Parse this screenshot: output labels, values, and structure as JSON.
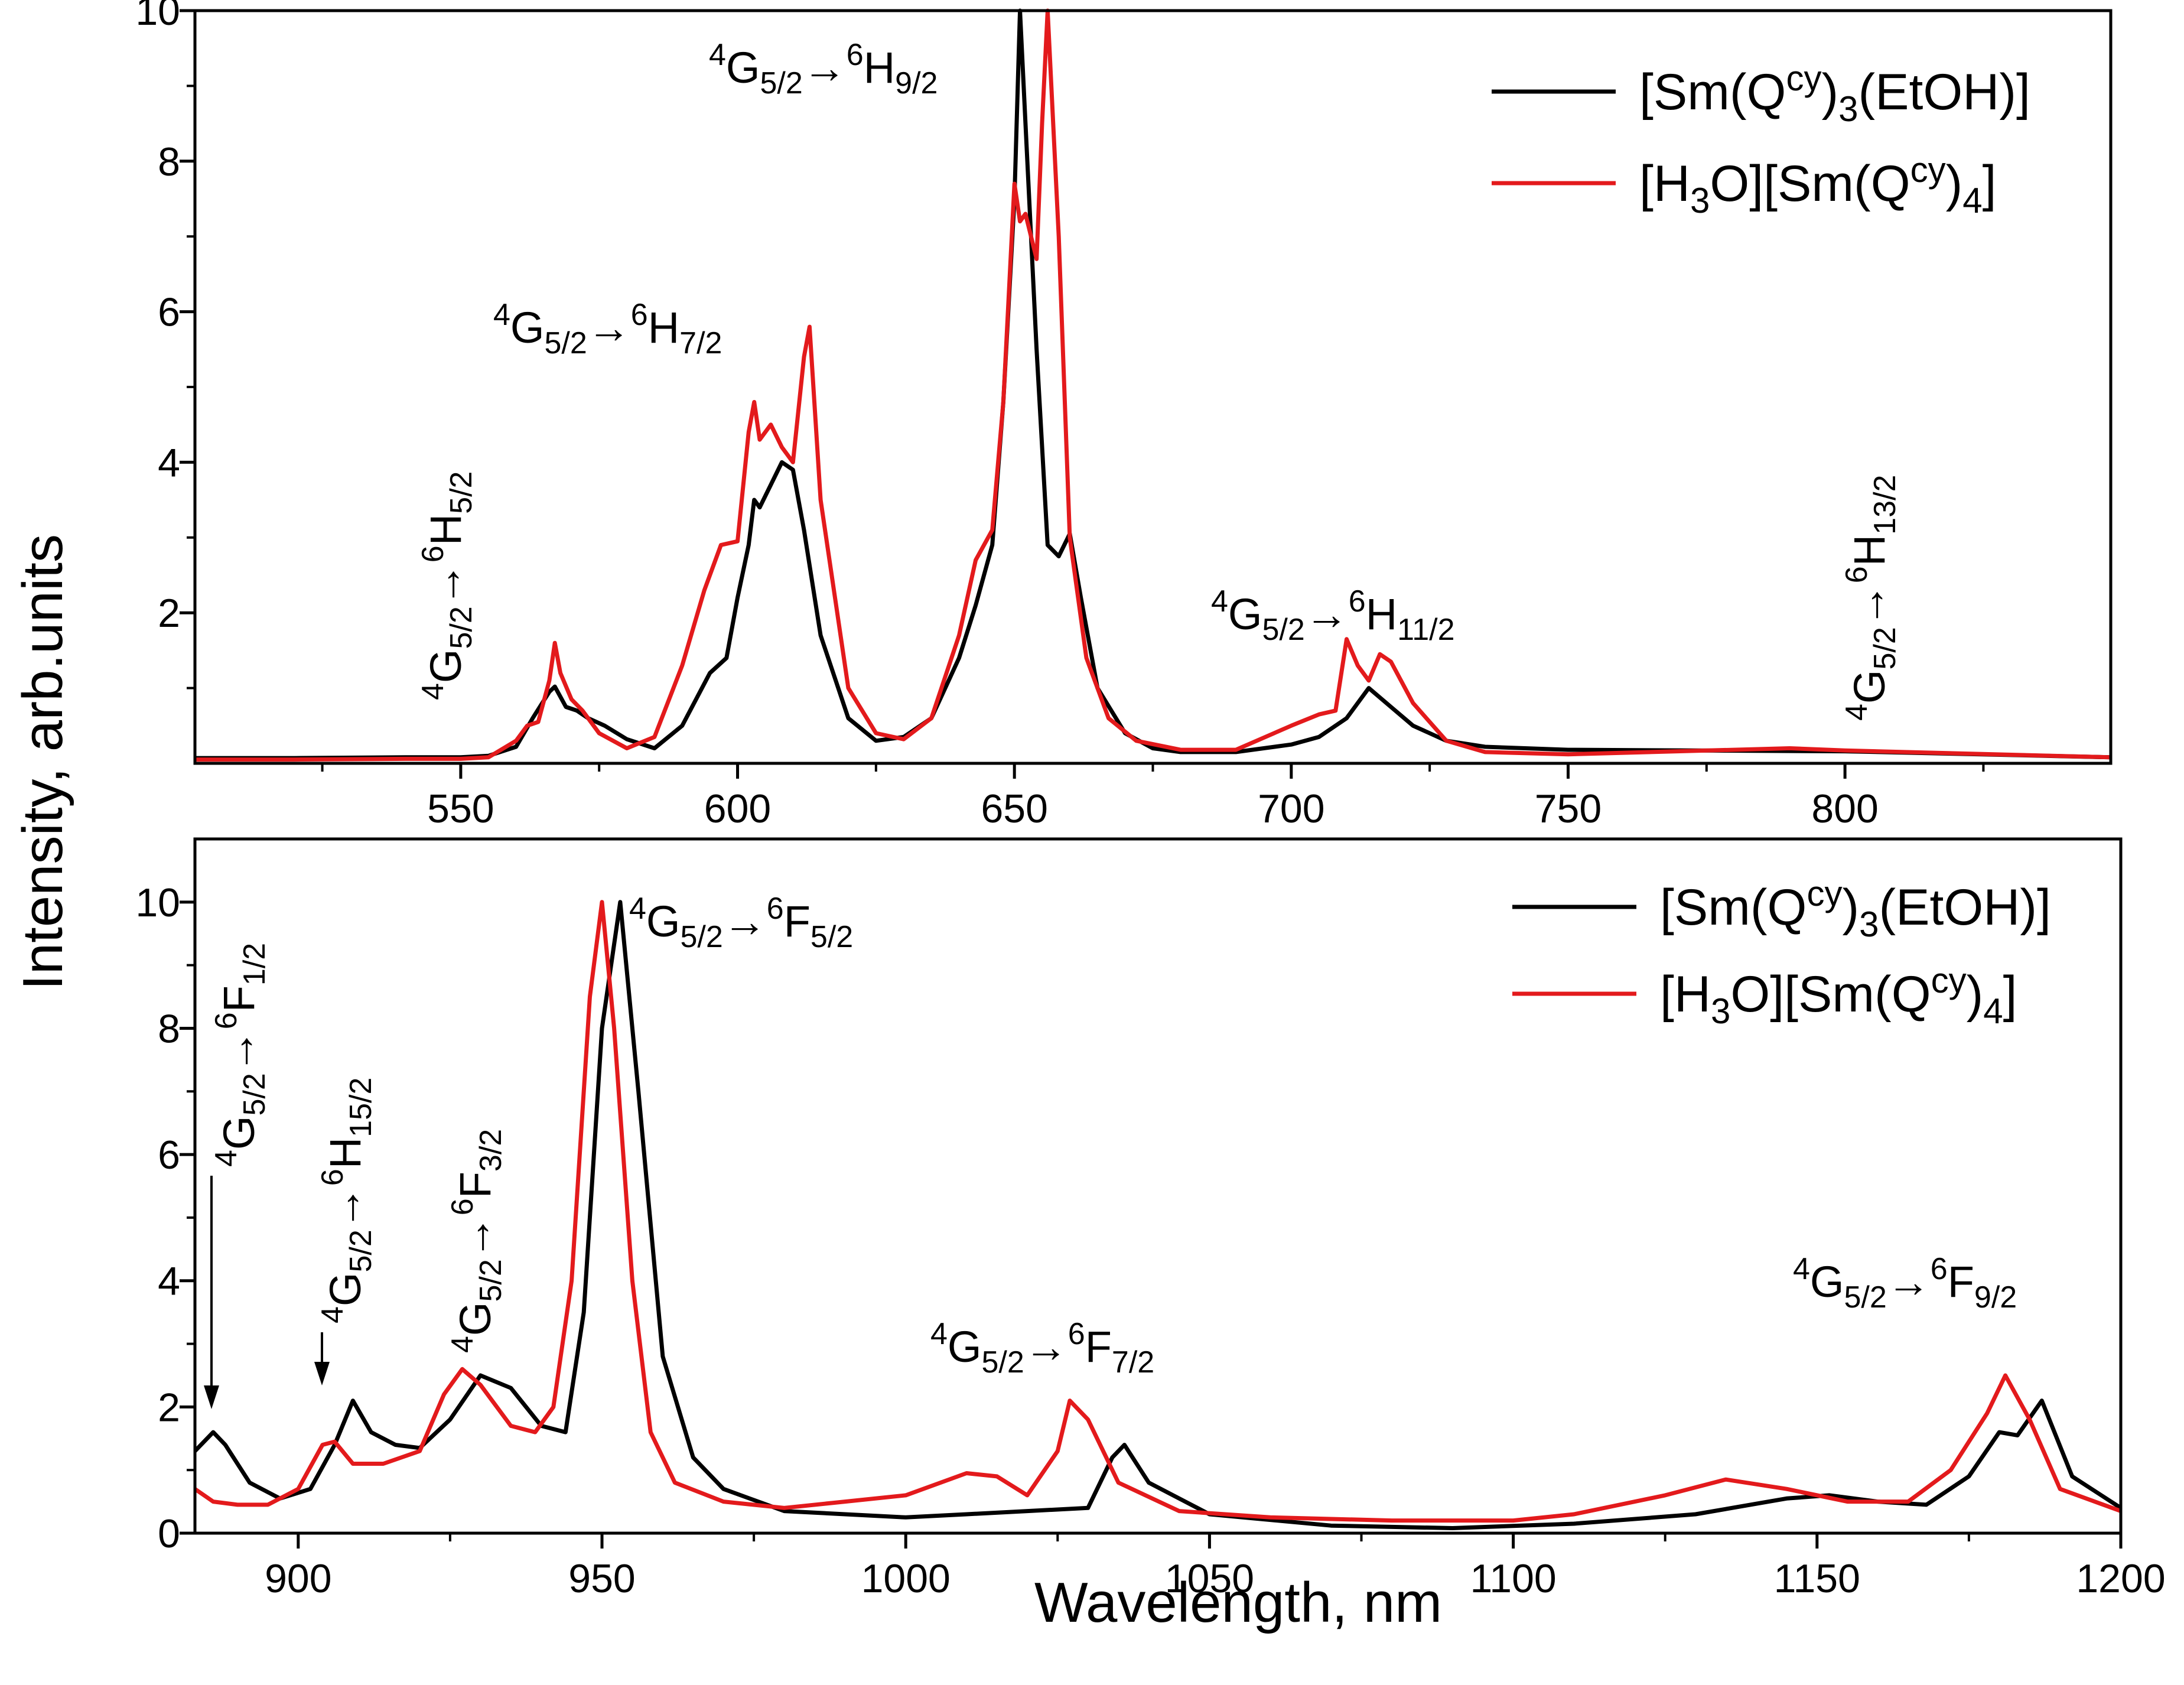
{
  "figure": {
    "ylabel": "Intensity, arb.units",
    "xlabel": "Wavelength, nm"
  },
  "chart_data": [
    {
      "type": "line",
      "panel": "top",
      "xlim": [
        502,
        848
      ],
      "ylim": [
        0,
        10
      ],
      "xticks": [
        550,
        600,
        650,
        700,
        750,
        800
      ],
      "yticks": [
        2,
        4,
        6,
        8,
        10
      ],
      "legend_position": "top-right",
      "series": [
        {
          "name": "[Sm(Qcy)3(EtOH)]",
          "color": "#000000",
          "x": [
            502,
            520,
            540,
            550,
            555,
            560,
            563,
            566,
            567,
            569,
            571,
            573,
            576,
            580,
            585,
            590,
            595,
            598,
            600,
            602,
            603,
            604,
            606,
            608,
            610,
            612,
            615,
            620,
            625,
            630,
            635,
            640,
            643,
            646,
            648,
            650,
            651,
            652,
            654,
            656,
            658,
            660,
            662,
            665,
            670,
            675,
            680,
            690,
            700,
            705,
            710,
            714,
            718,
            722,
            728,
            735,
            750,
            800,
            848
          ],
          "values": [
            0.07,
            0.07,
            0.08,
            0.08,
            0.1,
            0.22,
            0.6,
            0.95,
            1.02,
            0.75,
            0.7,
            0.6,
            0.5,
            0.32,
            0.2,
            0.5,
            1.2,
            1.4,
            2.2,
            2.9,
            3.5,
            3.4,
            3.7,
            4.0,
            3.9,
            3.1,
            1.7,
            0.6,
            0.3,
            0.35,
            0.6,
            1.4,
            2.1,
            2.9,
            4.8,
            7.5,
            10.0,
            8.5,
            5.5,
            2.9,
            2.75,
            3.05,
            2.2,
            1.0,
            0.4,
            0.2,
            0.15,
            0.15,
            0.25,
            0.35,
            0.6,
            1.0,
            0.75,
            0.5,
            0.3,
            0.22,
            0.18,
            0.16,
            0.08
          ]
        },
        {
          "name": "[H3O][Sm(Qcy)4]",
          "color": "#e31a1c",
          "x": [
            502,
            520,
            540,
            550,
            555,
            560,
            562,
            564,
            566,
            567,
            568,
            570,
            572,
            575,
            580,
            585,
            590,
            594,
            597,
            600,
            602,
            603,
            604,
            606,
            608,
            610,
            612,
            613,
            615,
            620,
            625,
            630,
            635,
            640,
            643,
            646,
            648,
            650,
            651,
            652,
            654,
            655,
            656,
            658,
            660,
            663,
            667,
            672,
            680,
            690,
            700,
            705,
            708,
            710,
            712,
            714,
            716,
            718,
            722,
            728,
            735,
            750,
            790,
            800,
            848
          ],
          "values": [
            0.05,
            0.05,
            0.06,
            0.06,
            0.08,
            0.3,
            0.5,
            0.55,
            1.1,
            1.6,
            1.2,
            0.85,
            0.7,
            0.4,
            0.2,
            0.35,
            1.3,
            2.3,
            2.9,
            2.95,
            4.4,
            4.8,
            4.3,
            4.5,
            4.2,
            4.0,
            5.4,
            5.8,
            3.5,
            1.0,
            0.4,
            0.32,
            0.6,
            1.7,
            2.7,
            3.1,
            4.8,
            7.7,
            7.2,
            7.3,
            6.7,
            8.5,
            10.0,
            7.0,
            3.0,
            1.4,
            0.6,
            0.3,
            0.18,
            0.18,
            0.5,
            0.65,
            0.7,
            1.65,
            1.3,
            1.1,
            1.45,
            1.35,
            0.8,
            0.3,
            0.15,
            0.12,
            0.2,
            0.17,
            0.08
          ]
        }
      ],
      "annotations": [
        {
          "base": "4",
          "g": "G",
          "gsub": "5/2",
          "arrow": "→",
          "h": "6",
          "t": "H",
          "tsub": "9/2"
        },
        {
          "base": "4",
          "g": "G",
          "gsub": "5/2",
          "arrow": "→",
          "h": "6",
          "t": "H",
          "tsub": "7/2"
        },
        {
          "base": "4",
          "g": "G",
          "gsub": "5/2",
          "arrow": "→",
          "h": "6",
          "t": "H",
          "tsub": "5/2"
        },
        {
          "base": "4",
          "g": "G",
          "gsub": "5/2",
          "arrow": "→",
          "h": "6",
          "t": "H",
          "tsub": "11/2"
        },
        {
          "base": "4",
          "g": "G",
          "gsub": "5/2",
          "arrow": "→",
          "h": "6",
          "t": "H",
          "tsub": "13/2"
        }
      ]
    },
    {
      "type": "line",
      "panel": "bottom",
      "xlim": [
        883,
        1200
      ],
      "ylim": [
        0,
        11
      ],
      "xticks": [
        900,
        950,
        1000,
        1050,
        1100,
        1150,
        1200
      ],
      "yticks": [
        0,
        2,
        4,
        6,
        8,
        10
      ],
      "legend_position": "top-right",
      "series": [
        {
          "name": "[Sm(Qcy)3(EtOH)]",
          "color": "#000000",
          "x": [
            883,
            886,
            888,
            892,
            897,
            902,
            906,
            909,
            912,
            916,
            920,
            925,
            930,
            935,
            940,
            944,
            947,
            950,
            953,
            956,
            960,
            965,
            970,
            980,
            1000,
            1010,
            1020,
            1030,
            1034,
            1036,
            1040,
            1050,
            1070,
            1090,
            1110,
            1130,
            1145,
            1152,
            1160,
            1168,
            1175,
            1180,
            1183,
            1187,
            1192,
            1200
          ],
          "values": [
            1.3,
            1.6,
            1.4,
            0.8,
            0.55,
            0.7,
            1.4,
            2.1,
            1.6,
            1.4,
            1.35,
            1.8,
            2.5,
            2.3,
            1.7,
            1.6,
            3.5,
            8.0,
            10.0,
            7.0,
            2.8,
            1.2,
            0.7,
            0.35,
            0.25,
            0.3,
            0.35,
            0.4,
            1.2,
            1.4,
            0.8,
            0.3,
            0.12,
            0.08,
            0.15,
            0.3,
            0.55,
            0.6,
            0.5,
            0.45,
            0.9,
            1.6,
            1.55,
            2.1,
            0.9,
            0.4
          ]
        },
        {
          "name": "[H3O][Sm(Qcy)4]",
          "color": "#e31a1c",
          "x": [
            883,
            886,
            890,
            895,
            900,
            904,
            906,
            909,
            914,
            920,
            924,
            927,
            930,
            935,
            939,
            942,
            945,
            948,
            950,
            952,
            955,
            958,
            962,
            970,
            980,
            990,
            1000,
            1010,
            1015,
            1020,
            1025,
            1027,
            1030,
            1035,
            1045,
            1060,
            1080,
            1100,
            1110,
            1125,
            1135,
            1145,
            1155,
            1165,
            1172,
            1178,
            1181,
            1185,
            1190,
            1200
          ],
          "values": [
            0.7,
            0.5,
            0.45,
            0.45,
            0.7,
            1.4,
            1.45,
            1.1,
            1.1,
            1.3,
            2.2,
            2.6,
            2.35,
            1.7,
            1.6,
            2.0,
            4.0,
            8.5,
            10.0,
            8.0,
            4.0,
            1.6,
            0.8,
            0.5,
            0.4,
            0.5,
            0.6,
            0.95,
            0.9,
            0.6,
            1.3,
            2.1,
            1.8,
            0.8,
            0.35,
            0.25,
            0.2,
            0.2,
            0.3,
            0.6,
            0.85,
            0.7,
            0.5,
            0.5,
            1.0,
            1.9,
            2.5,
            1.8,
            0.7,
            0.35
          ]
        }
      ],
      "annotations": [
        {
          "base": "4",
          "g": "G",
          "gsub": "5/2",
          "arrow": "→",
          "h": "6",
          "t": "F",
          "tsub": "5/2"
        },
        {
          "base": "4",
          "g": "G",
          "gsub": "5/2",
          "arrow": "→",
          "h": "6",
          "t": "F",
          "tsub": "1/2"
        },
        {
          "base": "4",
          "g": "G",
          "gsub": "5/2",
          "arrow": "→",
          "h": "6",
          "t": "H",
          "tsub": "15/2"
        },
        {
          "base": "4",
          "g": "G",
          "gsub": "5/2",
          "arrow": "→",
          "h": "6",
          "t": "F",
          "tsub": "3/2"
        },
        {
          "base": "4",
          "g": "G",
          "gsub": "5/2",
          "arrow": "→",
          "h": "6",
          "t": "F",
          "tsub": "7/2"
        },
        {
          "base": "4",
          "g": "G",
          "gsub": "5/2",
          "arrow": "→",
          "h": "6",
          "t": "F",
          "tsub": "9/2"
        }
      ]
    }
  ],
  "legend": {
    "series1": {
      "pre": "[Sm(Q",
      "sup": "cy",
      "mid": ")",
      "sub": "3",
      "post": "(EtOH)]"
    },
    "series2": {
      "pre": "[H",
      "sub": "3",
      "mid": "O][Sm(Q",
      "sup": "cy",
      "mid2": ")",
      "sub2": "4",
      "post": "]"
    }
  }
}
